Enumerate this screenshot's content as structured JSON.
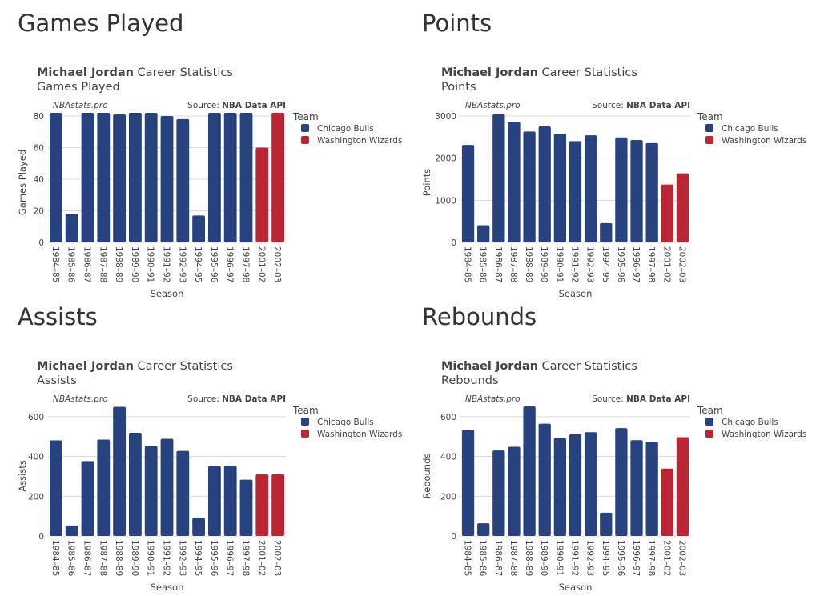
{
  "colors": {
    "Chicago Bulls": "#27427f",
    "Washington Wizards": "#b82733",
    "grid": "#d9d9d9"
  },
  "common": {
    "player": "Michael Jordan",
    "title_suffix": "Career Statistics",
    "watermark": "NBAstats.pro",
    "source_prefix": "Source: ",
    "source_name": "NBA Data API",
    "xlabel": "Season",
    "legend_title": "Team",
    "legend_items": [
      "Chicago Bulls",
      "Washington Wizards"
    ]
  },
  "chart_data": [
    {
      "type": "bar",
      "heading": "Games Played",
      "title": "Michael Jordan Career Statistics",
      "subtitle": "Games Played",
      "xlabel": "Season",
      "ylabel": "Games Played",
      "ylim": [
        0,
        82
      ],
      "yticks": [
        0,
        20,
        40,
        60,
        80
      ],
      "categories": [
        "1984-85",
        "1985-86",
        "1986-87",
        "1987-88",
        "1988-89",
        "1989-90",
        "1990-91",
        "1991-92",
        "1992-93",
        "1994-95",
        "1995-96",
        "1996-97",
        "1997-98",
        "2001-02",
        "2002-03"
      ],
      "teams": [
        "Chicago Bulls",
        "Chicago Bulls",
        "Chicago Bulls",
        "Chicago Bulls",
        "Chicago Bulls",
        "Chicago Bulls",
        "Chicago Bulls",
        "Chicago Bulls",
        "Chicago Bulls",
        "Chicago Bulls",
        "Chicago Bulls",
        "Chicago Bulls",
        "Chicago Bulls",
        "Washington Wizards",
        "Washington Wizards"
      ],
      "values": [
        82,
        18,
        82,
        82,
        81,
        82,
        82,
        80,
        78,
        17,
        82,
        82,
        82,
        60,
        82
      ]
    },
    {
      "type": "bar",
      "heading": "Points",
      "title": "Michael Jordan Career Statistics",
      "subtitle": "Points",
      "xlabel": "Season",
      "ylabel": "Points",
      "ylim": [
        0,
        3076
      ],
      "yticks": [
        0,
        1000,
        2000,
        3000
      ],
      "categories": [
        "1984-85",
        "1985-86",
        "1986-87",
        "1987-88",
        "1988-89",
        "1989-90",
        "1990-91",
        "1991-92",
        "1992-93",
        "1994-95",
        "1995-96",
        "1996-97",
        "1997-98",
        "2001-02",
        "2002-03"
      ],
      "teams": [
        "Chicago Bulls",
        "Chicago Bulls",
        "Chicago Bulls",
        "Chicago Bulls",
        "Chicago Bulls",
        "Chicago Bulls",
        "Chicago Bulls",
        "Chicago Bulls",
        "Chicago Bulls",
        "Chicago Bulls",
        "Chicago Bulls",
        "Chicago Bulls",
        "Chicago Bulls",
        "Washington Wizards",
        "Washington Wizards"
      ],
      "values": [
        2313,
        408,
        3041,
        2868,
        2633,
        2753,
        2580,
        2404,
        2541,
        457,
        2491,
        2431,
        2357,
        1375,
        1640
      ]
    },
    {
      "type": "bar",
      "heading": "Assists",
      "title": "Michael Jordan Career Statistics",
      "subtitle": "Assists",
      "xlabel": "Season",
      "ylabel": "Assists",
      "ylim": [
        0,
        652
      ],
      "yticks": [
        0,
        200,
        400,
        600
      ],
      "categories": [
        "1984-85",
        "1985-86",
        "1986-87",
        "1987-88",
        "1988-89",
        "1989-90",
        "1990-91",
        "1991-92",
        "1992-93",
        "1994-95",
        "1995-96",
        "1996-97",
        "1997-98",
        "2001-02",
        "2002-03"
      ],
      "teams": [
        "Chicago Bulls",
        "Chicago Bulls",
        "Chicago Bulls",
        "Chicago Bulls",
        "Chicago Bulls",
        "Chicago Bulls",
        "Chicago Bulls",
        "Chicago Bulls",
        "Chicago Bulls",
        "Chicago Bulls",
        "Chicago Bulls",
        "Chicago Bulls",
        "Chicago Bulls",
        "Washington Wizards",
        "Washington Wizards"
      ],
      "values": [
        481,
        53,
        377,
        485,
        650,
        519,
        453,
        489,
        428,
        90,
        352,
        352,
        283,
        310,
        311
      ]
    },
    {
      "type": "bar",
      "heading": "Rebounds",
      "title": "Michael Jordan Career Statistics",
      "subtitle": "Rebounds",
      "xlabel": "Season",
      "ylabel": "Rebounds",
      "ylim": [
        0,
        652
      ],
      "yticks": [
        0,
        200,
        400,
        600
      ],
      "categories": [
        "1984-85",
        "1985-86",
        "1986-87",
        "1987-88",
        "1988-89",
        "1989-90",
        "1990-91",
        "1991-92",
        "1992-93",
        "1994-95",
        "1995-96",
        "1996-97",
        "1997-98",
        "2001-02",
        "2002-03"
      ],
      "teams": [
        "Chicago Bulls",
        "Chicago Bulls",
        "Chicago Bulls",
        "Chicago Bulls",
        "Chicago Bulls",
        "Chicago Bulls",
        "Chicago Bulls",
        "Chicago Bulls",
        "Chicago Bulls",
        "Chicago Bulls",
        "Chicago Bulls",
        "Chicago Bulls",
        "Chicago Bulls",
        "Washington Wizards",
        "Washington Wizards"
      ],
      "values": [
        534,
        64,
        430,
        449,
        652,
        565,
        492,
        511,
        522,
        117,
        543,
        482,
        475,
        339,
        497
      ]
    }
  ]
}
